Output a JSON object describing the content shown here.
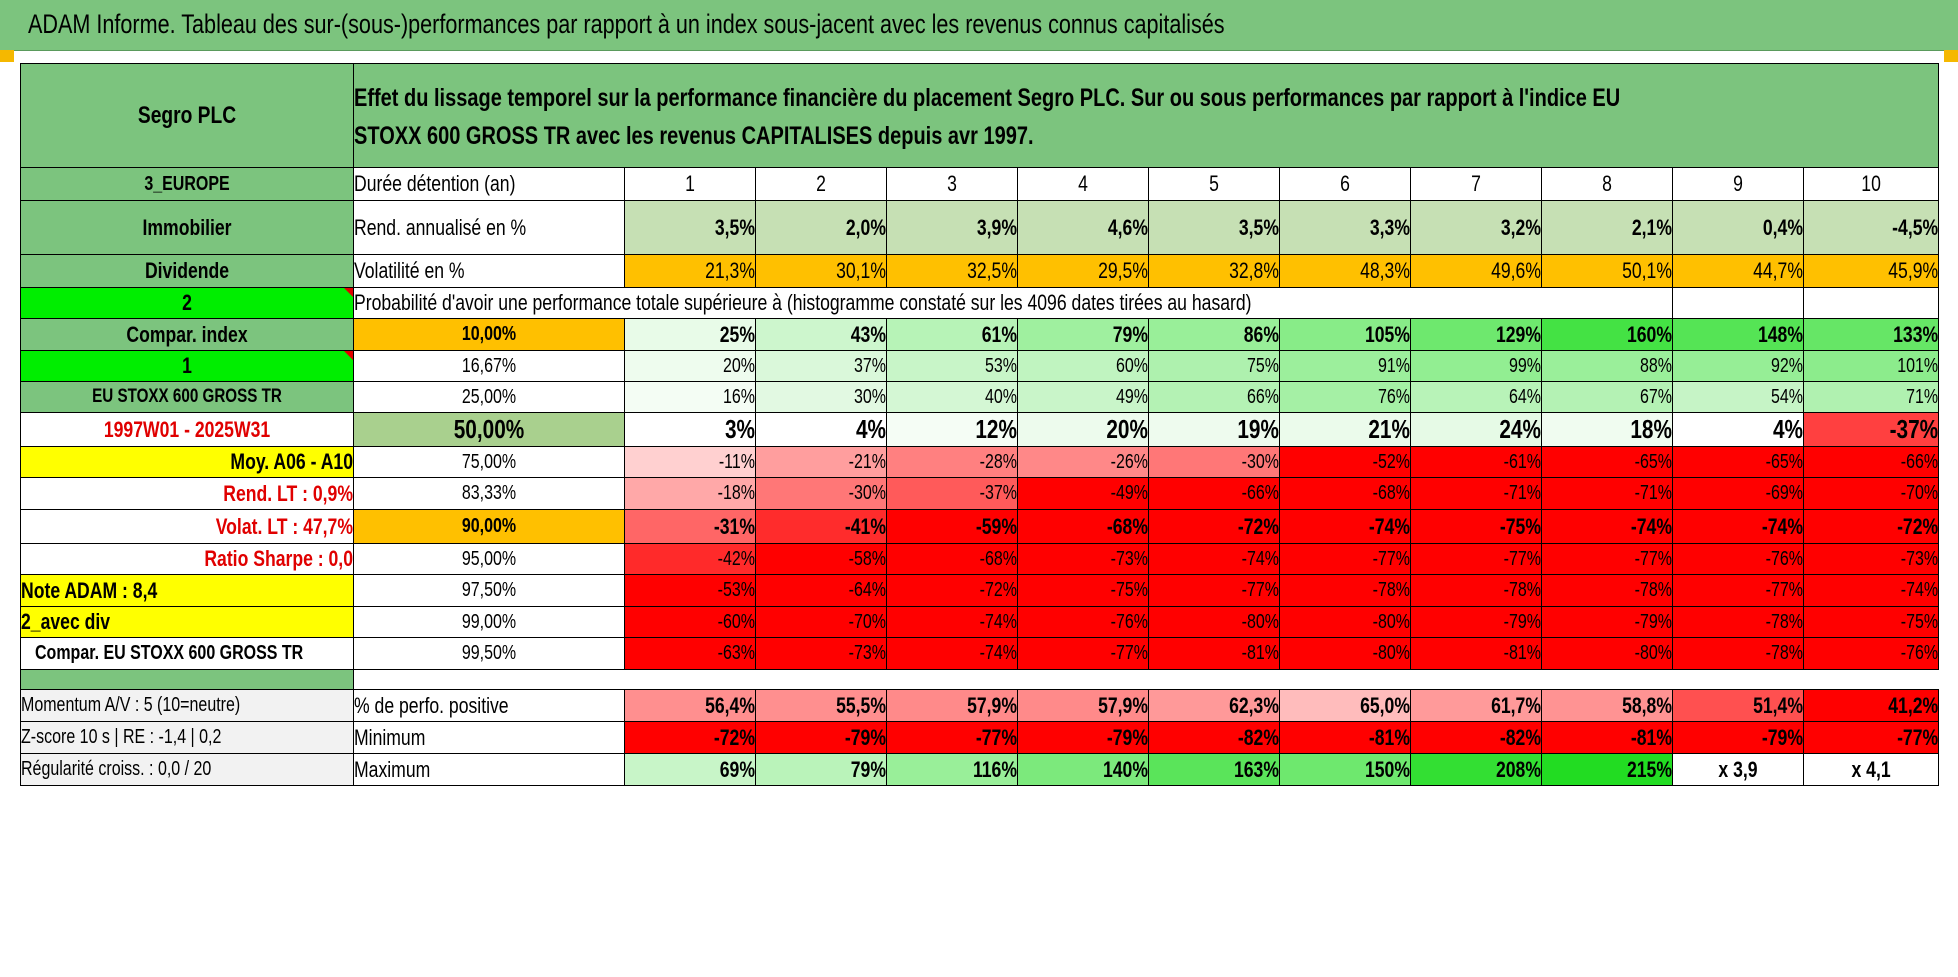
{
  "banner": {
    "title": "ADAM Informe. Tableau des sur-(sous-)performances par rapport à un index sous-jacent avec les revenus connus capitalisés"
  },
  "colors": {
    "header_green": "#7cc47e",
    "light_green": "#c6e0b4",
    "orange": "#ffc000",
    "bright_green": "#00ee00",
    "yellow": "#ffff00",
    "red": "#ff0000"
  },
  "side": {
    "company": "Segro PLC",
    "region": "3_EUROPE",
    "sector": "Immobilier",
    "type": "Dividende",
    "selector1": "2",
    "compar_index": "Compar. index",
    "selector2": "1",
    "index_name": "EU STOXX 600 GROSS TR",
    "period": "1997W01 - 2025W31",
    "moy": "Moy. A06 - A10",
    "rend_lt": "Rend. LT :    0,9%",
    "volat_lt": "Volat. LT :    47,7%",
    "sharpe": "Ratio Sharpe :    0,0",
    "note": "Note ADAM : 8,4",
    "avec_div": "2_avec div",
    "compar_long": "Compar. EU STOXX 600 GROSS TR",
    "momentum": "Momentum A/V : 5 (10=neutre)",
    "zscore": "Z-score 10 s | RE : -1,4 | 0,2",
    "regularite": "Régularité croiss. : 0,0 / 20"
  },
  "header": {
    "description": "Effet du lissage temporel sur la performance financière du placement Segro PLC. Sur ou sous performances par rapport à l'indice EU STOXX 600 GROSS TR avec les revenus CAPITALISES depuis avr 1997.",
    "duree_label": "Durée détention (an)",
    "years": [
      "1",
      "2",
      "3",
      "4",
      "5",
      "6",
      "7",
      "8",
      "9",
      "10"
    ],
    "rend_label": "Rend. annualisé en %",
    "rend": [
      "3,5%",
      "2,0%",
      "3,9%",
      "4,6%",
      "3,5%",
      "3,3%",
      "3,2%",
      "2,1%",
      "0,4%",
      "-4,5%"
    ],
    "vol_label": "Volatilité en %",
    "vol": [
      "21,3%",
      "30,1%",
      "32,5%",
      "29,5%",
      "32,8%",
      "48,3%",
      "49,6%",
      "50,1%",
      "44,7%",
      "45,9%"
    ],
    "prob_title": "Probabilité d'avoir une performance totale supérieure à (histogramme constaté sur les 4096 dates tirées au hasard)"
  },
  "prob_rows": [
    {
      "level": "10,00%",
      "values": [
        "25%",
        "43%",
        "61%",
        "79%",
        "86%",
        "105%",
        "129%",
        "160%",
        "148%",
        "133%"
      ]
    },
    {
      "level": "16,67%",
      "values": [
        "20%",
        "37%",
        "53%",
        "60%",
        "75%",
        "91%",
        "99%",
        "88%",
        "92%",
        "101%"
      ]
    },
    {
      "level": "25,00%",
      "values": [
        "16%",
        "30%",
        "40%",
        "49%",
        "66%",
        "76%",
        "64%",
        "67%",
        "54%",
        "71%"
      ]
    },
    {
      "level": "50,00%",
      "values": [
        "3%",
        "4%",
        "12%",
        "20%",
        "19%",
        "21%",
        "24%",
        "18%",
        "4%",
        "-37%"
      ]
    },
    {
      "level": "75,00%",
      "values": [
        "-11%",
        "-21%",
        "-28%",
        "-26%",
        "-30%",
        "-52%",
        "-61%",
        "-65%",
        "-65%",
        "-66%"
      ]
    },
    {
      "level": "83,33%",
      "values": [
        "-18%",
        "-30%",
        "-37%",
        "-49%",
        "-66%",
        "-68%",
        "-71%",
        "-71%",
        "-69%",
        "-70%"
      ]
    },
    {
      "level": "90,00%",
      "values": [
        "-31%",
        "-41%",
        "-59%",
        "-68%",
        "-72%",
        "-74%",
        "-75%",
        "-74%",
        "-74%",
        "-72%"
      ]
    },
    {
      "level": "95,00%",
      "values": [
        "-42%",
        "-58%",
        "-68%",
        "-73%",
        "-74%",
        "-77%",
        "-77%",
        "-77%",
        "-76%",
        "-73%"
      ]
    },
    {
      "level": "97,50%",
      "values": [
        "-53%",
        "-64%",
        "-72%",
        "-75%",
        "-77%",
        "-78%",
        "-78%",
        "-78%",
        "-77%",
        "-74%"
      ]
    },
    {
      "level": "99,00%",
      "values": [
        "-60%",
        "-70%",
        "-74%",
        "-76%",
        "-80%",
        "-80%",
        "-79%",
        "-79%",
        "-78%",
        "-75%"
      ]
    },
    {
      "level": "99,50%",
      "values": [
        "-63%",
        "-73%",
        "-74%",
        "-77%",
        "-81%",
        "-80%",
        "-81%",
        "-80%",
        "-78%",
        "-76%"
      ]
    }
  ],
  "stats": {
    "pos_label": "% de perfo. positive",
    "pos": [
      "56,4%",
      "55,5%",
      "57,9%",
      "57,9%",
      "62,3%",
      "65,0%",
      "61,7%",
      "58,8%",
      "51,4%",
      "41,2%"
    ],
    "min_label": "Minimum",
    "min": [
      "-72%",
      "-79%",
      "-77%",
      "-79%",
      "-82%",
      "-81%",
      "-82%",
      "-81%",
      "-79%",
      "-77%"
    ],
    "max_label": "Maximum",
    "max": [
      "69%",
      "79%",
      "116%",
      "140%",
      "163%",
      "150%",
      "208%",
      "215%",
      "x 3,9",
      "x 4,1"
    ]
  },
  "cell_colors": {
    "rend": [
      "#c6e0b4",
      "#c6e0b4",
      "#c6e0b4",
      "#c6e0b4",
      "#c6e0b4",
      "#c6e0b4",
      "#c6e0b4",
      "#c6e0b4",
      "#c6e0b4",
      "#c6e0b4"
    ],
    "vol": [
      "#ffc000",
      "#ffc000",
      "#ffc000",
      "#ffc000",
      "#ffc000",
      "#ffc000",
      "#ffc000",
      "#ffc000",
      "#ffc000",
      "#ffc000"
    ],
    "prob": [
      [
        "#e8fbe8",
        "#cdf6cd",
        "#b7f3b7",
        "#9ff09f",
        "#99ef99",
        "#88ec88",
        "#6ee86e",
        "#44e244",
        "#55e455",
        "#66e666"
      ],
      [
        "#eefcee",
        "#daf8da",
        "#c8f5c8",
        "#c0f4c0",
        "#aef1ae",
        "#9cef9c",
        "#92ee92",
        "#9aef9a",
        "#96ee96",
        "#8cec8c"
      ],
      [
        "#f4fdf4",
        "#e2f9e2",
        "#d4f7d4",
        "#c9f5c9",
        "#b4f2b4",
        "#a5f0a5",
        "#b8f3b8",
        "#b4f2b4",
        "#c6f4c6",
        "#b0f1b0"
      ],
      [
        "#ffffff",
        "#ffffff",
        "#f5fdf5",
        "#edfbed",
        "#eefbee",
        "#ebfbeb",
        "#e6fae6",
        "#f0fcf0",
        "#ffffff",
        "#ff4040"
      ],
      [
        "#ffd0d0",
        "#ff9e9e",
        "#ff8080",
        "#ff8888",
        "#ff7777",
        "#ff0000",
        "#ff0000",
        "#ff0000",
        "#ff0000",
        "#ff0000"
      ],
      [
        "#ffa8a8",
        "#ff7777",
        "#ff5a5a",
        "#ff0000",
        "#ff0000",
        "#ff0000",
        "#ff0000",
        "#ff0000",
        "#ff0000",
        "#ff0000"
      ],
      [
        "#ff6666",
        "#ff2c2c",
        "#ff0000",
        "#ff0000",
        "#ff0000",
        "#ff0000",
        "#ff0000",
        "#ff0000",
        "#ff0000",
        "#ff0000"
      ],
      [
        "#ff2a2a",
        "#ff0000",
        "#ff0000",
        "#ff0000",
        "#ff0000",
        "#ff0000",
        "#ff0000",
        "#ff0000",
        "#ff0000",
        "#ff0000"
      ],
      [
        "#ff0000",
        "#ff0000",
        "#ff0000",
        "#ff0000",
        "#ff0000",
        "#ff0000",
        "#ff0000",
        "#ff0000",
        "#ff0000",
        "#ff0000"
      ],
      [
        "#ff0000",
        "#ff0000",
        "#ff0000",
        "#ff0000",
        "#ff0000",
        "#ff0000",
        "#ff0000",
        "#ff0000",
        "#ff0000",
        "#ff0000"
      ],
      [
        "#ff0000",
        "#ff0000",
        "#ff0000",
        "#ff0000",
        "#ff0000",
        "#ff0000",
        "#ff0000",
        "#ff0000",
        "#ff0000",
        "#ff0000"
      ]
    ],
    "pos": [
      "#ff8f8f",
      "#ff8f8f",
      "#ff8a8a",
      "#ff8a8a",
      "#ff9999",
      "#ffbcbc",
      "#ff9a9a",
      "#ff9393",
      "#ff5050",
      "#ff0000"
    ],
    "min": [
      "#ff0000",
      "#ff0000",
      "#ff0000",
      "#ff0000",
      "#ff0000",
      "#ff0000",
      "#ff0000",
      "#ff0000",
      "#ff0000",
      "#ff0000"
    ],
    "max": [
      "#c8f5c8",
      "#baf3ba",
      "#99ef99",
      "#7ce97c",
      "#5ae45a",
      "#6ee86e",
      "#33df33",
      "#22dc22",
      "#ffffff",
      "#ffffff"
    ]
  }
}
